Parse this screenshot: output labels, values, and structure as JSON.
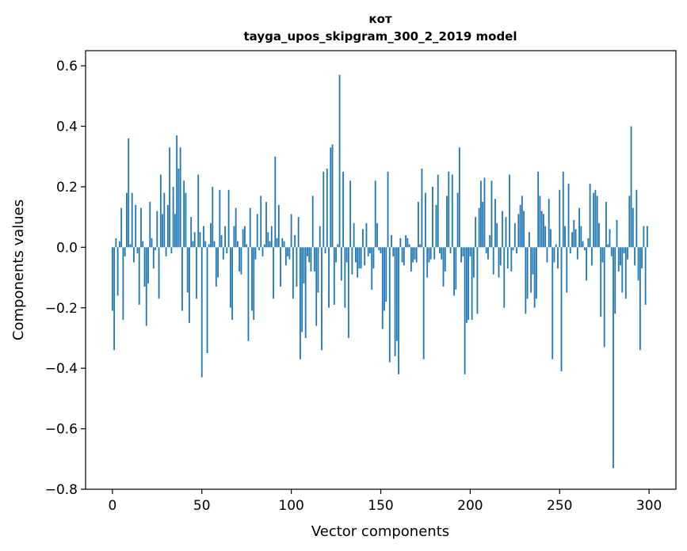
{
  "chart_data": {
    "type": "bar",
    "title": "кот",
    "subtitle": "tayga_upos_skipgram_300_2_2019 model",
    "xlabel": "Vector components",
    "ylabel": "Components values",
    "xlim": [
      -15,
      315
    ],
    "ylim": [
      -0.8,
      0.65
    ],
    "xticks": [
      0,
      50,
      100,
      150,
      200,
      250,
      300
    ],
    "xtick_labels": [
      "0",
      "50",
      "100",
      "150",
      "200",
      "250",
      "300"
    ],
    "yticks": [
      -0.8,
      -0.6,
      -0.4,
      -0.2,
      0.0,
      0.2,
      0.4,
      0.6
    ],
    "ytick_labels": [
      "−0.8",
      "−0.6",
      "−0.4",
      "−0.2",
      "0.0",
      "0.2",
      "0.4",
      "0.6"
    ],
    "bar_color": "#1f77b4",
    "values": [
      -0.21,
      -0.34,
      0.03,
      -0.16,
      0.02,
      0.13,
      -0.24,
      -0.03,
      0.18,
      0.36,
      0.01,
      0.18,
      -0.05,
      0.14,
      -0.02,
      -0.19,
      0.13,
      0.02,
      -0.13,
      -0.26,
      -0.12,
      0.15,
      0.03,
      -0.07,
      -0.01,
      0.12,
      -0.17,
      0.24,
      0.11,
      0.18,
      -0.03,
      0.14,
      0.33,
      -0.02,
      0.2,
      0.11,
      0.37,
      0.26,
      0.33,
      -0.21,
      0.22,
      0.18,
      -0.15,
      -0.25,
      0.1,
      0.02,
      0.05,
      -0.17,
      0.24,
      0.05,
      -0.43,
      0.07,
      0.02,
      -0.35,
      0.01,
      0.08,
      0.2,
      0.02,
      -0.13,
      -0.1,
      0.19,
      0.04,
      -0.04,
      0.07,
      -0.02,
      0.19,
      -0.2,
      -0.24,
      0.07,
      0.13,
      0.02,
      -0.08,
      -0.09,
      0.06,
      0.07,
      0.01,
      -0.31,
      0.13,
      -0.21,
      -0.24,
      -0.04,
      0.11,
      -0.01,
      0.17,
      -0.03,
      0.01,
      0.15,
      0.05,
      0.02,
      0.07,
      -0.17,
      0.3,
      0.03,
      0.14,
      -0.13,
      0.03,
      0.02,
      -0.06,
      -0.03,
      -0.04,
      0.11,
      -0.17,
      0.04,
      -0.13,
      0.1,
      -0.37,
      -0.28,
      -0.12,
      -0.3,
      -0.03,
      -0.05,
      -0.08,
      0.17,
      -0.08,
      -0.26,
      -0.15,
      0.07,
      -0.34,
      0.25,
      -0.02,
      0.26,
      -0.2,
      0.33,
      0.34,
      -0.19,
      -0.05,
      0.01,
      0.57,
      -0.11,
      0.25,
      -0.2,
      -0.05,
      -0.3,
      0.22,
      -0.09,
      0.08,
      -0.05,
      -0.1,
      -0.07,
      -0.07,
      0.06,
      -0.06,
      0.08,
      -0.03,
      -0.02,
      -0.14,
      -0.07,
      0.22,
      0.08,
      -0.01,
      -0.02,
      -0.27,
      -0.21,
      -0.18,
      0.25,
      -0.38,
      0.04,
      -0.03,
      -0.36,
      -0.31,
      -0.42,
      0.03,
      -0.05,
      -0.06,
      0.04,
      0.03,
      0.01,
      -0.08,
      -0.05,
      -0.04,
      -0.05,
      0.15,
      0.01,
      0.26,
      -0.37,
      0.18,
      -0.1,
      -0.05,
      -0.04,
      0.2,
      -0.04,
      0.14,
      0.24,
      -0.02,
      -0.04,
      -0.13,
      -0.08,
      0.17,
      0.25,
      -0.02,
      0.24,
      -0.16,
      -0.14,
      0.18,
      0.33,
      -0.05,
      -0.03,
      -0.42,
      -0.25,
      -0.24,
      -0.03,
      -0.24,
      -0.1,
      0.1,
      -0.22,
      0.13,
      0.22,
      0.15,
      0.23,
      -0.02,
      -0.04,
      0.04,
      0.22,
      -0.09,
      0.16,
      0.08,
      -0.1,
      -0.06,
      0.12,
      -0.2,
      0.1,
      -0.07,
      0.24,
      -0.08,
      -0.01,
      0.08,
      -0.02,
      0.11,
      0.14,
      0.17,
      0.12,
      -0.22,
      -0.17,
      0.05,
      -0.15,
      -0.09,
      -0.2,
      -0.17,
      0.25,
      0.17,
      0.12,
      0.11,
      0.07,
      -0.05,
      0.16,
      0.06,
      -0.37,
      -0.05,
      0.01,
      -0.07,
      0.19,
      -0.41,
      0.25,
      0.07,
      -0.15,
      0.21,
      -0.02,
      0.05,
      0.09,
      0.06,
      -0.04,
      0.13,
      0.07,
      0.02,
      -0.01,
      -0.11,
      0.03,
      0.21,
      -0.06,
      0.18,
      0.19,
      0.17,
      0.08,
      -0.23,
      -0.05,
      -0.33,
      0.15,
      0.01,
      0.06,
      -0.03,
      -0.73,
      -0.22,
      0.09,
      -0.08,
      -0.06,
      -0.15,
      -0.02,
      -0.17,
      -0.04,
      0.17,
      0.4,
      0.13,
      -0.06,
      0.19,
      -0.11,
      -0.34,
      -0.07,
      0.07,
      -0.19,
      0.07
    ]
  }
}
